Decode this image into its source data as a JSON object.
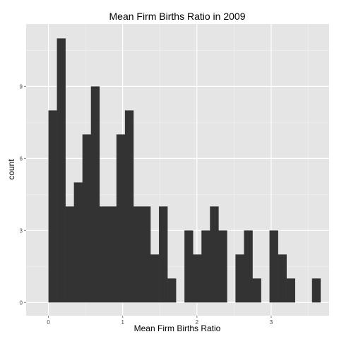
{
  "chart_data": {
    "type": "bar",
    "title": "Mean Firm Births Ratio in 2009",
    "xlabel": "Mean Firm Births Ratio",
    "ylabel": "count",
    "xlim": [
      -0.3,
      3.78
    ],
    "ylim": [
      -0.55,
      11.6
    ],
    "x_ticks": [
      0,
      1,
      2,
      3
    ],
    "x_tick_labels": [
      "0",
      "1",
      "2",
      "3"
    ],
    "y_ticks": [
      0,
      3,
      6,
      9
    ],
    "y_tick_labels": [
      "0",
      "3",
      "6",
      "9"
    ],
    "bin_start": 0.0,
    "bin_width": 0.1145,
    "values": [
      8,
      11,
      4,
      5,
      7,
      9,
      4,
      4,
      7,
      8,
      4,
      4,
      2,
      4,
      1,
      0,
      3,
      2,
      3,
      4,
      3,
      0,
      2,
      3,
      1,
      0,
      3,
      2,
      1,
      0,
      0,
      1
    ],
    "grid": true,
    "colors": {
      "panel": "#e5e5e5",
      "grid_major": "#ffffff",
      "grid_minor": "#f2f2f2",
      "bar": "#333333",
      "tick_text": "#4d4d4d"
    }
  }
}
